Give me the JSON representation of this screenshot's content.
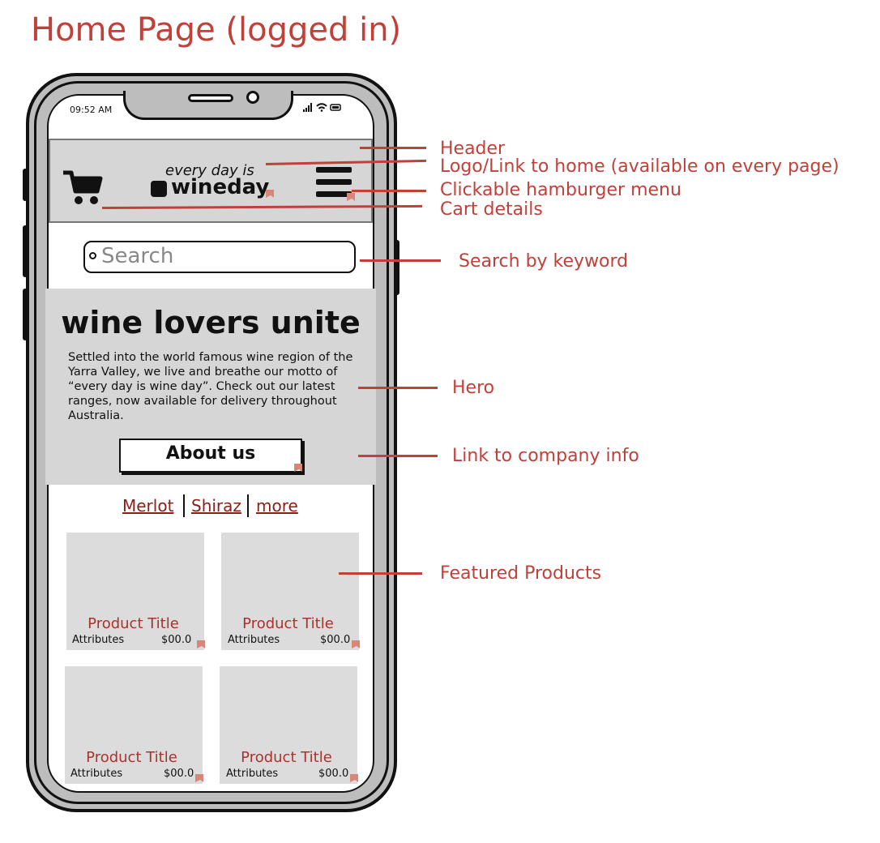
{
  "page_title": "Home Page (logged in)",
  "status_bar": {
    "time": "09:52 AM",
    "icons": "..ıl ᯤ ▭"
  },
  "header": {
    "tagline": "every day is",
    "logo_text": "wineday",
    "cart_icon": "cart-icon",
    "menu_icon": "hamburger-icon"
  },
  "search": {
    "placeholder": "Search"
  },
  "hero": {
    "heading": "wine lovers unite",
    "body": "Settled into the world famous wine region of the Yarra Valley, we live and breathe our motto of “every day is wine day”. Check out our latest ranges, now available for delivery throughout Australia.",
    "button_label": "About us"
  },
  "categories": [
    "Merlot",
    "Shiraz",
    "more"
  ],
  "products": [
    {
      "title": "Product Title",
      "attributes": "Attributes",
      "price": "$00.0"
    },
    {
      "title": "Product Title",
      "attributes": "Attributes",
      "price": "$00.0"
    },
    {
      "title": "Product Title",
      "attributes": "Attributes",
      "price": "$00.0"
    },
    {
      "title": "Product Title",
      "attributes": "Attributes",
      "price": "$00.0"
    }
  ],
  "annotations": {
    "header": "Header",
    "logo": "Logo/Link to home (available on every page)",
    "menu": "Clickable hamburger menu",
    "cart": "Cart details",
    "search": "Search by keyword",
    "hero": "Hero",
    "about": "Link to company info",
    "featured": "Featured Products"
  },
  "colors": {
    "annotation": "#c0403a",
    "panel_gray": "#d6d6d6",
    "product_title": "#a8332c",
    "link": "#8a1f1a"
  }
}
